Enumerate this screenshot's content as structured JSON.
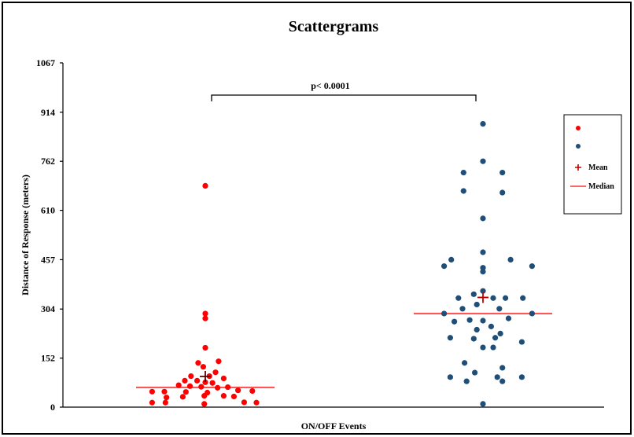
{
  "chart_data": {
    "type": "scatter",
    "title": "Scattergrams",
    "xlabel": "ON/OFF Events",
    "ylabel": "Distance of Response (meters)",
    "ylim": [
      0,
      1067
    ],
    "yticks": [
      0,
      152,
      304,
      457,
      610,
      762,
      914,
      1067
    ],
    "significance_label": "p< 0.0001",
    "legend": {
      "placement": "right",
      "entries": [
        {
          "label": "",
          "kind": "dot",
          "color": "#ff0000"
        },
        {
          "label": "",
          "kind": "dot",
          "color": "#1f4e79"
        },
        {
          "label": "Mean",
          "kind": "plus",
          "color": "#c00000"
        },
        {
          "label": "Median",
          "kind": "line",
          "color": "#ff6666"
        }
      ]
    },
    "series": [
      {
        "color": "#ff0000",
        "group": 1,
        "mean": 95,
        "median": 61,
        "points": [
          {
            "o": 0.0,
            "y": 686
          },
          {
            "o": 0.0,
            "y": 290
          },
          {
            "o": 0.0,
            "y": 275
          },
          {
            "o": 0.0,
            "y": 184
          },
          {
            "o": -0.35,
            "y": 137
          },
          {
            "o": 0.65,
            "y": 142
          },
          {
            "o": -0.1,
            "y": 125
          },
          {
            "o": 0.5,
            "y": 108
          },
          {
            "o": -0.7,
            "y": 96
          },
          {
            "o": 0.2,
            "y": 96
          },
          {
            "o": 0.9,
            "y": 89
          },
          {
            "o": -1.0,
            "y": 82
          },
          {
            "o": -0.4,
            "y": 82
          },
          {
            "o": 0.0,
            "y": 77
          },
          {
            "o": 0.35,
            "y": 75
          },
          {
            "o": -1.3,
            "y": 68
          },
          {
            "o": -0.75,
            "y": 65
          },
          {
            "o": -0.2,
            "y": 63
          },
          {
            "o": 0.6,
            "y": 60
          },
          {
            "o": 1.1,
            "y": 62
          },
          {
            "o": 1.6,
            "y": 52
          },
          {
            "o": 2.3,
            "y": 50
          },
          {
            "o": -2.6,
            "y": 48
          },
          {
            "o": -2.0,
            "y": 48
          },
          {
            "o": -0.95,
            "y": 47
          },
          {
            "o": 0.1,
            "y": 45
          },
          {
            "o": -1.9,
            "y": 30
          },
          {
            "o": -1.1,
            "y": 32
          },
          {
            "o": -0.05,
            "y": 35
          },
          {
            "o": 0.9,
            "y": 35
          },
          {
            "o": 1.4,
            "y": 33
          },
          {
            "o": -2.6,
            "y": 14
          },
          {
            "o": -1.95,
            "y": 14
          },
          {
            "o": -0.05,
            "y": 10
          },
          {
            "o": 1.9,
            "y": 15
          },
          {
            "o": 2.5,
            "y": 14
          }
        ]
      },
      {
        "color": "#1f4e79",
        "group": 2,
        "mean": 340,
        "median": 290,
        "points": [
          {
            "o": 0.0,
            "y": 878
          },
          {
            "o": 0.0,
            "y": 762
          },
          {
            "o": -0.95,
            "y": 727
          },
          {
            "o": 0.95,
            "y": 727
          },
          {
            "o": -0.95,
            "y": 670
          },
          {
            "o": 0.95,
            "y": 665
          },
          {
            "o": 0.0,
            "y": 585
          },
          {
            "o": 0.0,
            "y": 480
          },
          {
            "o": -1.55,
            "y": 457
          },
          {
            "o": 1.35,
            "y": 457
          },
          {
            "o": -1.9,
            "y": 437
          },
          {
            "o": 2.4,
            "y": 437
          },
          {
            "o": 0.0,
            "y": 432
          },
          {
            "o": 0.0,
            "y": 420
          },
          {
            "o": -0.45,
            "y": 350
          },
          {
            "o": 0.0,
            "y": 360
          },
          {
            "o": 0.5,
            "y": 338
          },
          {
            "o": -1.2,
            "y": 338
          },
          {
            "o": 1.1,
            "y": 338
          },
          {
            "o": 1.95,
            "y": 338
          },
          {
            "o": -0.3,
            "y": 318
          },
          {
            "o": -1.0,
            "y": 305
          },
          {
            "o": 0.8,
            "y": 305
          },
          {
            "o": -1.9,
            "y": 290
          },
          {
            "o": 2.4,
            "y": 290
          },
          {
            "o": -0.65,
            "y": 270
          },
          {
            "o": 0.0,
            "y": 268
          },
          {
            "o": 1.25,
            "y": 275
          },
          {
            "o": -1.4,
            "y": 265
          },
          {
            "o": 0.4,
            "y": 250
          },
          {
            "o": -0.3,
            "y": 240
          },
          {
            "o": 0.85,
            "y": 228
          },
          {
            "o": -1.6,
            "y": 215
          },
          {
            "o": 0.6,
            "y": 215
          },
          {
            "o": -0.45,
            "y": 212
          },
          {
            "o": 1.9,
            "y": 202
          },
          {
            "o": 0.0,
            "y": 185
          },
          {
            "o": 0.5,
            "y": 185
          },
          {
            "o": -0.9,
            "y": 137
          },
          {
            "o": 0.95,
            "y": 122
          },
          {
            "o": -0.4,
            "y": 107
          },
          {
            "o": -1.6,
            "y": 93
          },
          {
            "o": 0.7,
            "y": 93
          },
          {
            "o": 1.9,
            "y": 93
          },
          {
            "o": -0.8,
            "y": 80
          },
          {
            "o": 0.95,
            "y": 80
          },
          {
            "o": 0.0,
            "y": 10
          }
        ]
      }
    ]
  }
}
